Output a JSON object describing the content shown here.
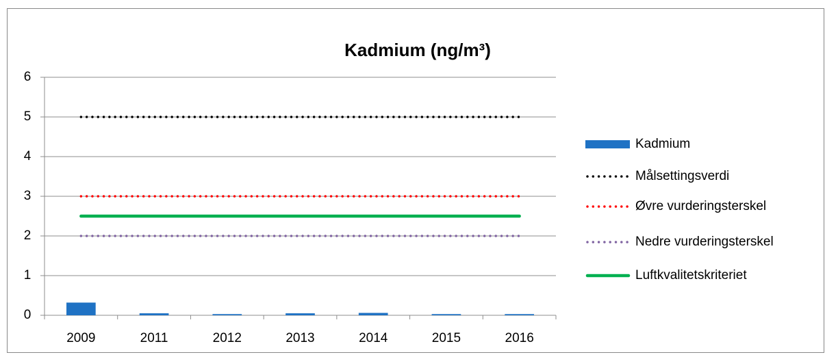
{
  "chart_data": {
    "type": "bar",
    "title": "Kadmium (ng/m³)",
    "categories": [
      "2009",
      "2011",
      "2012",
      "2013",
      "2014",
      "2015",
      "2016"
    ],
    "series": [
      {
        "name": "Kadmium",
        "type": "bar",
        "color": "#1f72c4",
        "values": [
          0.32,
          0.05,
          0.03,
          0.05,
          0.06,
          0.03,
          0.03
        ]
      },
      {
        "name": "Målsettingsverdi",
        "type": "line",
        "style": "dotted",
        "color": "#000000",
        "values": [
          5,
          5,
          5,
          5,
          5,
          5,
          5
        ]
      },
      {
        "name": "Øvre vurderingsterskel",
        "type": "line",
        "style": "dotted",
        "color": "#ff0000",
        "values": [
          3,
          3,
          3,
          3,
          3,
          3,
          3
        ]
      },
      {
        "name": "Nedre vurderingsterskel",
        "type": "line",
        "style": "dotted",
        "color": "#8064a2",
        "values": [
          2,
          2,
          2,
          2,
          2,
          2,
          2
        ]
      },
      {
        "name": "Luftkvalitetskriteriet",
        "type": "line",
        "style": "solid",
        "color": "#00b050",
        "values": [
          2.5,
          2.5,
          2.5,
          2.5,
          2.5,
          2.5,
          2.5
        ]
      }
    ],
    "ylim": [
      0,
      6
    ],
    "yticks": [
      0,
      1,
      2,
      3,
      4,
      5,
      6
    ],
    "grid": true,
    "legend": "right"
  }
}
